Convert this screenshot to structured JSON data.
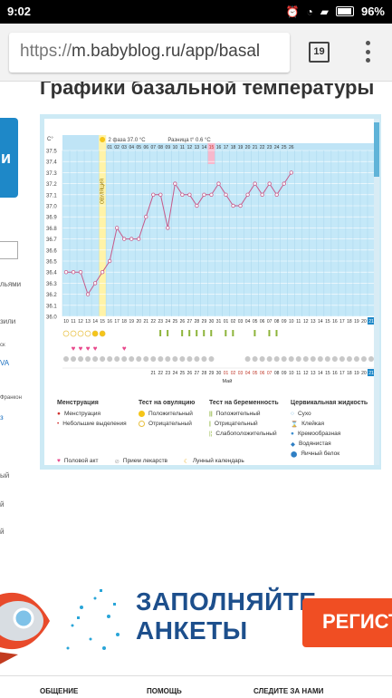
{
  "status_bar": {
    "time": "9:02",
    "battery": "96%"
  },
  "browser": {
    "url_scheme": "https://",
    "url_rest": "m.babyblog.ru/app/basal",
    "tab_count": "19"
  },
  "page": {
    "title": "Графики базальной температуры"
  },
  "left_sidebar": {
    "banner_text": "и",
    "items": [
      "льями",
      "зили",
      "ск",
      "VA",
      "Франкон",
      "з",
      "ый",
      "й",
      "й"
    ]
  },
  "chart": {
    "header": {
      "deg_label": "C°",
      "phase": "2 фаза 37.0 °C",
      "diff": "Разница t° 0.6 °C",
      "ovulation_label": "ОВУЛЯЦИЯ"
    },
    "y_ticks": [
      "37.5",
      "37.4",
      "37.3",
      "37.2",
      "37.1",
      "37.0",
      "36.9",
      "36.8",
      "36.7",
      "36.6",
      "36.5",
      "36.4",
      "36.3",
      "36.2",
      "36.1",
      "36.0"
    ],
    "cycle_days": [
      "01",
      "02",
      "03",
      "04",
      "05",
      "06",
      "07",
      "08",
      "09",
      "10",
      "11",
      "12",
      "13",
      "14",
      "15",
      "16",
      "17",
      "18",
      "19",
      "20",
      "21",
      "22",
      "23",
      "24",
      "25",
      "26"
    ],
    "dates_row": [
      "10",
      "11",
      "12",
      "13",
      "14",
      "15",
      "16",
      "17",
      "18",
      "19",
      "20",
      "21",
      "22",
      "23",
      "24",
      "25",
      "26",
      "27",
      "28",
      "29",
      "30",
      "31",
      "01",
      "02",
      "03",
      "04",
      "05",
      "06",
      "07",
      "08",
      "09",
      "10",
      "11",
      "12",
      "13",
      "14",
      "15",
      "16",
      "17",
      "18",
      "19",
      "20",
      "21"
    ],
    "bottom_dates": [
      "21",
      "22",
      "23",
      "24",
      "25",
      "26",
      "27",
      "28",
      "29",
      "30",
      "01",
      "02",
      "03",
      "04",
      "05",
      "06",
      "07",
      "08",
      "09",
      "10",
      "11",
      "12",
      "13",
      "14",
      "15",
      "16",
      "17",
      "18",
      "19",
      "20",
      "21"
    ],
    "month_label": "Май",
    "temps": [
      36.4,
      36.4,
      36.4,
      36.2,
      36.3,
      36.4,
      36.5,
      36.8,
      36.7,
      36.7,
      36.7,
      36.9,
      37.1,
      37.1,
      36.8,
      37.2,
      37.1,
      37.1,
      37.0,
      37.1,
      37.1,
      37.2,
      37.1,
      37.0,
      37.0,
      37.1,
      37.2,
      37.1,
      37.2,
      37.1,
      37.2,
      37.3
    ],
    "temp_range": [
      36.0,
      37.5
    ]
  },
  "legend": {
    "menstruation": {
      "title": "Менструация",
      "items": [
        "Менструация",
        "Небольшие выделения"
      ]
    },
    "ovulation_test": {
      "title": "Тест на овуляцию",
      "items": [
        "Положительный",
        "Отрицательный"
      ]
    },
    "pregnancy_test": {
      "title": "Тест на беременность",
      "items": [
        "Положительный",
        "Отрицательный",
        "Слабоположительный"
      ]
    },
    "cervical": {
      "title": "Цервикальная жидкость",
      "items": [
        "Сухо",
        "Клейкая",
        "Кремообразная",
        "Водянистая",
        "Яичный белок"
      ]
    },
    "bottom": [
      "Половой акт",
      "Прием лекарств",
      "Лунный календарь"
    ]
  },
  "promo": {
    "line1": "ЗАПОЛНЯЙТЕ",
    "line2": "АНКЕТЫ",
    "button": "РЕГИСТР"
  },
  "footer": {
    "items": [
      "ОБЩЕНИЕ",
      "ПОМОЩЬ",
      "СЛЕДИТЕ ЗА НАМИ"
    ]
  },
  "colors": {
    "chart_bg": "#bfe6f7",
    "ovulation": "#fff3a8",
    "line": "#c65a8a",
    "accent_orange": "#f04e23",
    "brand_blue": "#1d4f8c"
  }
}
